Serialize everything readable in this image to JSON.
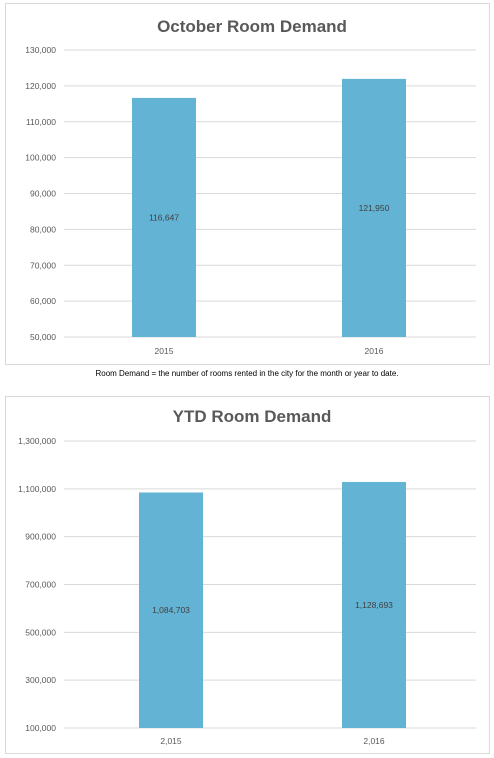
{
  "caption": "Room Demand = the number of rooms rented in the city for the month or year to date.",
  "chart_data": [
    {
      "type": "bar",
      "title": "October Room Demand",
      "categories": [
        "2015",
        "2016"
      ],
      "values": [
        116647,
        121950
      ],
      "data_labels": [
        "116,647",
        "121,950"
      ],
      "ylim": [
        50000,
        130000
      ],
      "yticks": [
        50000,
        60000,
        70000,
        80000,
        90000,
        100000,
        110000,
        120000,
        130000
      ],
      "ytick_labels": [
        "50,000",
        "60,000",
        "70,000",
        "80,000",
        "90,000",
        "100,000",
        "110,000",
        "120,000",
        "130,000"
      ],
      "grid": true,
      "bar_color": "#63b3d5"
    },
    {
      "type": "bar",
      "title": "YTD Room Demand",
      "categories": [
        "2,015",
        "2,016"
      ],
      "values": [
        1084703,
        1128693
      ],
      "data_labels": [
        "1,084,703",
        "1,128,693"
      ],
      "ylim": [
        100000,
        1300000
      ],
      "yticks": [
        100000,
        300000,
        500000,
        700000,
        900000,
        1100000,
        1300000
      ],
      "ytick_labels": [
        "100,000",
        "300,000",
        "500,000",
        "700,000",
        "900,000",
        "1,100,000",
        "1,300,000"
      ],
      "grid": true,
      "bar_color": "#63b3d5"
    }
  ]
}
